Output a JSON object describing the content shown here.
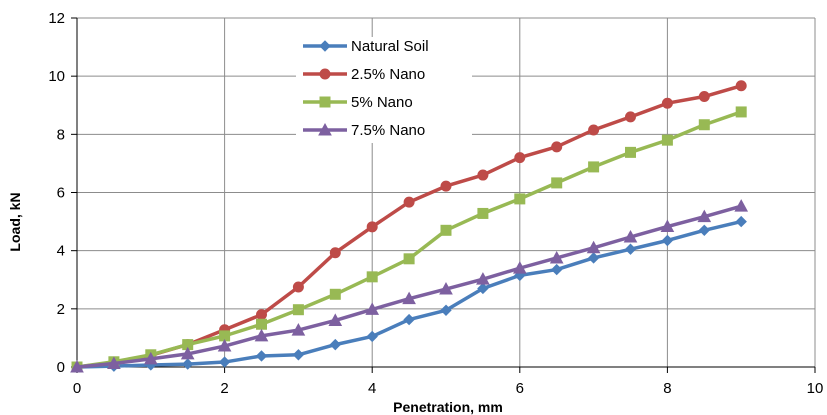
{
  "chart_data": {
    "type": "line",
    "title": "",
    "xlabel": "Penetration, mm",
    "ylabel": "Load, kN",
    "xlim": [
      0,
      10
    ],
    "ylim": [
      0,
      12
    ],
    "xticks": [
      "0",
      "2",
      "4",
      "6",
      "8",
      "10"
    ],
    "yticks": [
      "0",
      "2",
      "4",
      "6",
      "8",
      "10",
      "12"
    ],
    "grid": "vertical and horizontal major gridlines",
    "legend_position": "top-center",
    "x": [
      0,
      0.5,
      1,
      1.5,
      2,
      2.5,
      3,
      3.5,
      4,
      4.5,
      5,
      5.5,
      6,
      6.5,
      7,
      7.5,
      8,
      8.5,
      9
    ],
    "series": [
      {
        "name": "Natural Soil",
        "color": "#4a7ebb",
        "marker": "diamond",
        "values": [
          0,
          0.03,
          0.07,
          0.1,
          0.17,
          0.38,
          0.42,
          0.77,
          1.05,
          1.63,
          1.95,
          2.7,
          3.15,
          3.35,
          3.75,
          4.05,
          4.35,
          4.7,
          5.0
        ]
      },
      {
        "name": "2.5% Nano",
        "color": "#be4b48",
        "marker": "circle",
        "values": [
          0,
          0.15,
          0.4,
          0.77,
          1.28,
          1.8,
          2.75,
          3.93,
          4.82,
          5.67,
          6.22,
          6.6,
          7.2,
          7.57,
          8.15,
          8.6,
          9.07,
          9.3,
          9.67
        ]
      },
      {
        "name": "5% Nano",
        "color": "#98b954",
        "marker": "square",
        "values": [
          0,
          0.18,
          0.42,
          0.77,
          1.07,
          1.47,
          1.97,
          2.5,
          3.1,
          3.72,
          4.7,
          5.28,
          5.78,
          6.33,
          6.88,
          7.38,
          7.8,
          8.33,
          8.77
        ]
      },
      {
        "name": "7.5% Nano",
        "color": "#7d60a0",
        "marker": "triangle",
        "values": [
          0,
          0.12,
          0.28,
          0.45,
          0.72,
          1.07,
          1.27,
          1.6,
          1.98,
          2.35,
          2.68,
          3.02,
          3.4,
          3.75,
          4.1,
          4.47,
          4.83,
          5.17,
          5.53
        ]
      }
    ]
  }
}
